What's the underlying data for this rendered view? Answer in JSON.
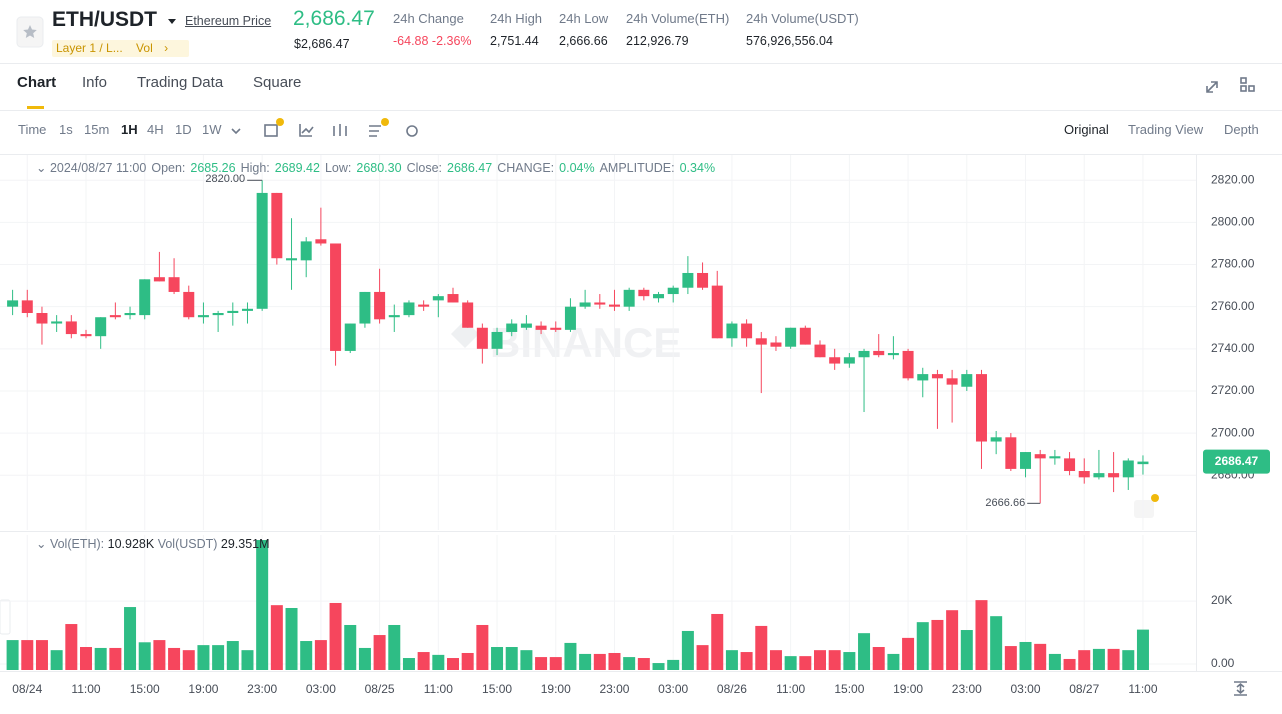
{
  "header": {
    "symbol": "ETH/USDT",
    "name_link": "Ethereum Price",
    "tags": [
      "Layer 1 / L...",
      "Vol"
    ],
    "price": "2,686.47",
    "price_usd": "$2,686.47",
    "stats": [
      {
        "label": "24h Change",
        "value": "-64.88 -2.36%"
      },
      {
        "label": "24h High",
        "value": "2,751.44"
      },
      {
        "label": "24h Low",
        "value": "2,666.66"
      },
      {
        "label": "24h Volume(ETH)",
        "value": "212,926.79"
      },
      {
        "label": "24h Volume(USDT)",
        "value": "576,926,556.04"
      }
    ]
  },
  "tabs": [
    "Chart",
    "Info",
    "Trading Data",
    "Square"
  ],
  "toolbar": {
    "intervals": [
      "Time",
      "1s",
      "15m",
      "1H",
      "4H",
      "1D",
      "1W"
    ],
    "views": [
      "Original",
      "Trading View",
      "Depth"
    ]
  },
  "chart_data": {
    "type": "candlestick",
    "watermark": "BINANCE",
    "info": {
      "time": "2024/08/27 11:00",
      "items": [
        {
          "label": "Open:",
          "value": "2685.26"
        },
        {
          "label": "High:",
          "value": "2689.42"
        },
        {
          "label": "Low:",
          "value": "2680.30"
        },
        {
          "label": "Close:",
          "value": "2686.47"
        },
        {
          "label": "CHANGE:",
          "value": "0.04%"
        },
        {
          "label": "AMPLITUDE:",
          "value": "0.34%"
        }
      ]
    },
    "categories": [
      null,
      "08/24",
      null,
      null,
      null,
      "11:00",
      null,
      null,
      null,
      "15:00",
      null,
      null,
      null,
      "19:00",
      null,
      null,
      null,
      "23:00",
      null,
      null,
      null,
      "03:00",
      null,
      null,
      null,
      "08/25",
      null,
      null,
      null,
      "11:00",
      null,
      null,
      null,
      "15:00",
      null,
      null,
      null,
      "19:00",
      null,
      null,
      null,
      "23:00",
      null,
      null,
      null,
      "03:00",
      null,
      null,
      null,
      "08/26",
      null,
      null,
      null,
      "11:00",
      null,
      null,
      null,
      "15:00",
      null,
      null,
      null,
      "19:00",
      null,
      null,
      null,
      "23:00",
      null,
      null,
      null,
      "03:00",
      null,
      null,
      null,
      "08/27",
      null,
      null,
      null,
      "11:00"
    ],
    "open": [
      2760,
      2763,
      2757,
      2752,
      2753,
      2747,
      2746,
      2756,
      2756,
      2756,
      2774,
      2774,
      2767,
      2755,
      2756,
      2757,
      2758,
      2759,
      2814,
      2782,
      2782,
      2792,
      2790,
      2739,
      2752,
      2767,
      2755,
      2756,
      2761,
      2763,
      2766,
      2762,
      2750,
      2740,
      2748,
      2750,
      2751,
      2750,
      2749,
      2760,
      2762,
      2761,
      2760,
      2768,
      2764,
      2766,
      2769,
      2776,
      2770,
      2745,
      2752,
      2745,
      2743,
      2741,
      2750,
      2742,
      2736,
      2733,
      2736,
      2739,
      2737,
      2739,
      2725,
      2728,
      2726,
      2722,
      2728,
      2696,
      2698,
      2683,
      2690,
      2688,
      2688,
      2682,
      2679,
      2681,
      2679,
      2685.26
    ],
    "high": [
      2768,
      2768,
      2760,
      2756,
      2756,
      2749,
      2755,
      2762,
      2760,
      2773,
      2786,
      2783,
      2770,
      2762,
      2758,
      2762,
      2762,
      2820,
      2814,
      2802,
      2793,
      2807,
      2790,
      2752,
      2767,
      2778,
      2761,
      2763,
      2763,
      2766,
      2769,
      2763,
      2752,
      2750,
      2754,
      2756,
      2753,
      2753,
      2764,
      2768,
      2766,
      2768,
      2769,
      2769,
      2767,
      2770,
      2784,
      2781,
      2777,
      2753,
      2754,
      2748,
      2746,
      2750,
      2751,
      2744,
      2740,
      2738,
      2740,
      2747,
      2746,
      2740,
      2731,
      2730,
      2730,
      2730,
      2730,
      2701,
      2700,
      2691,
      2692,
      2692,
      2691,
      2688,
      2692,
      2691,
      2688,
      2689.42
    ],
    "low": [
      2756,
      2755,
      2742,
      2748,
      2745,
      2745,
      2740,
      2754,
      2754,
      2754,
      2772,
      2766,
      2754,
      2752,
      2748,
      2751,
      2752,
      2758,
      2780,
      2768,
      2774,
      2789,
      2732,
      2738,
      2750,
      2752,
      2748,
      2755,
      2758,
      2755,
      2762,
      2750,
      2733,
      2737,
      2746,
      2749,
      2747,
      2748,
      2748,
      2759,
      2759,
      2758,
      2758,
      2763,
      2762,
      2762,
      2766,
      2768,
      2745,
      2741,
      2741,
      2719,
      2739,
      2740,
      2742,
      2736,
      2730,
      2731,
      2710,
      2736,
      2735,
      2725,
      2717,
      2702,
      2705,
      2720,
      2683,
      2690,
      2682,
      2679,
      2666.66,
      2685,
      2680,
      2676,
      2678,
      2672,
      2673,
      2680.3
    ],
    "close": [
      2763,
      2757,
      2752,
      2753,
      2747,
      2746,
      2755,
      2755,
      2757,
      2773,
      2772,
      2767,
      2755,
      2756,
      2757,
      2758,
      2759,
      2814,
      2783,
      2783,
      2791,
      2790,
      2739,
      2752,
      2767,
      2754,
      2756,
      2762,
      2760,
      2765,
      2762,
      2750,
      2740,
      2748,
      2752,
      2752,
      2749,
      2749,
      2760,
      2762,
      2761,
      2760,
      2768,
      2765,
      2766,
      2769,
      2776,
      2769,
      2745,
      2752,
      2745,
      2742,
      2741,
      2750,
      2742,
      2736,
      2733,
      2736,
      2739,
      2737,
      2738,
      2726,
      2728,
      2726,
      2723,
      2728,
      2696,
      2698,
      2683,
      2691,
      2688,
      2689,
      2682,
      2679,
      2681,
      2679,
      2687,
      2686.47
    ],
    "up_color": "#2ebd85",
    "down_color": "#f6465d",
    "ylim": [
      2654,
      2832
    ],
    "yticks": [
      {
        "value": 2680,
        "label": "2680.00"
      },
      {
        "value": 2700,
        "label": "2700.00"
      },
      {
        "value": 2720,
        "label": "2720.00"
      },
      {
        "value": 2740,
        "label": "2740.00"
      },
      {
        "value": 2760,
        "label": "2760.00"
      },
      {
        "value": 2780,
        "label": "2780.00"
      },
      {
        "value": 2800,
        "label": "2800.00"
      },
      {
        "value": 2820,
        "label": "2820.00"
      }
    ],
    "high_label": "2820.00",
    "low_label": "2666.66",
    "last_price_label": "2686.47",
    "volume": {
      "legend": [
        "Vol(ETH):",
        "10.928K",
        "Vol(USDT)",
        "29.351M"
      ],
      "values": [
        7600,
        7600,
        7600,
        4400,
        12700,
        5400,
        5100,
        5100,
        18100,
        6900,
        7600,
        5100,
        4400,
        6000,
        6000,
        7300,
        4400,
        39400,
        18700,
        17800,
        7300,
        7600,
        19400,
        12400,
        5100,
        9200,
        12400,
        1900,
        3800,
        2900,
        1900,
        3500,
        12400,
        5400,
        5400,
        4400,
        2200,
        2200,
        6700,
        3200,
        3200,
        3500,
        2200,
        1900,
        300,
        1300,
        10500,
        6000,
        15900,
        4400,
        3800,
        12100,
        4400,
        2500,
        2500,
        4400,
        4400,
        3800,
        9800,
        5400,
        3200,
        8300,
        13300,
        14000,
        17100,
        10800,
        20300,
        15200,
        5700,
        7000,
        6400,
        3200,
        1600,
        4400,
        4800,
        4800,
        4400,
        10928
      ],
      "ylim": [
        0,
        41000
      ],
      "yticks": [
        {
          "value": 0,
          "label": "0.00"
        },
        {
          "value": 20000,
          "label": "20K"
        }
      ]
    }
  }
}
